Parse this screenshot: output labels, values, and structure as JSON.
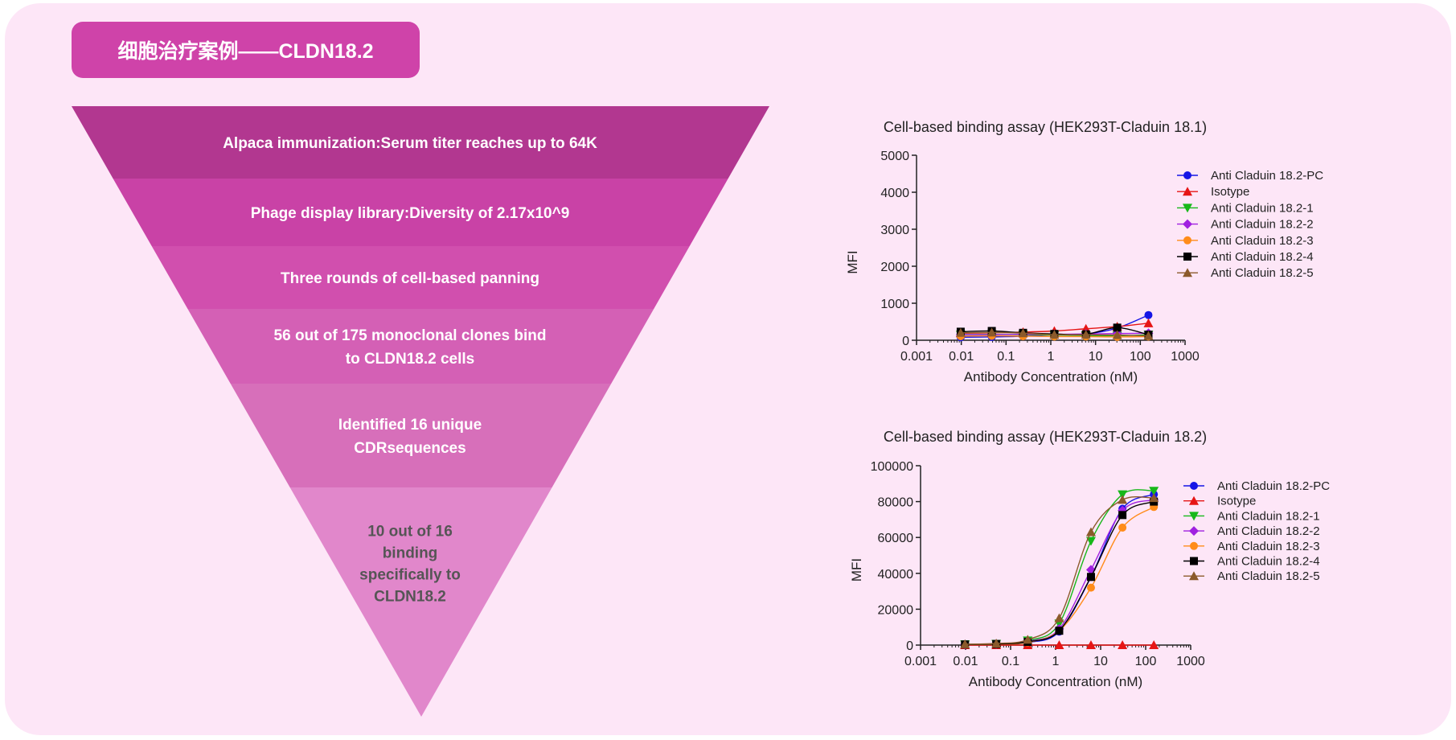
{
  "header": {
    "title": "细胞治疗案例——CLDN18.2"
  },
  "funnel": {
    "stages": [
      {
        "lines": [
          "Alpaca immunization:Serum titer reaches up to 64K"
        ],
        "color": "#b23790",
        "text_color": "#ffffff"
      },
      {
        "lines": [
          "Phage display library:Diversity of 2.17x10^9"
        ],
        "color": "#c942a6",
        "text_color": "#ffffff"
      },
      {
        "lines": [
          "Three rounds of cell-based panning"
        ],
        "color": "#d14fae",
        "text_color": "#ffffff"
      },
      {
        "lines": [
          "56 out of 175 monoclonal clones bind",
          "to CLDN18.2 cells"
        ],
        "color": "#d460b5",
        "text_color": "#ffffff"
      },
      {
        "lines": [
          "Identified 16 unique",
          "CDRsequences"
        ],
        "color": "#d76fba",
        "text_color": "#ffffff"
      },
      {
        "lines": [
          "10 out of 16",
          "binding",
          "specifically to",
          "CLDN18.2"
        ],
        "color": "#e187cb",
        "text_color": "#555555"
      }
    ]
  },
  "chart_data": [
    {
      "type": "scatter",
      "title": "Cell-based binding assay (HEK293T-Claduin 18.1)",
      "xlabel": "Antibody Concentration (nM)",
      "ylabel": "MFI",
      "x_scale": "log",
      "xlim": [
        0.001,
        1000
      ],
      "x_ticks": [
        "0.001",
        "0.01",
        "0.1",
        "1",
        "10",
        "100",
        "1000"
      ],
      "ylim": [
        0,
        5000
      ],
      "y_ticks": [
        "0",
        "1000",
        "2000",
        "3000",
        "4000",
        "5000"
      ],
      "grid": false,
      "legend_position": "top-right",
      "x": [
        0.0097,
        0.048,
        0.24,
        1.2,
        6.1,
        30.5,
        152
      ],
      "series": [
        {
          "name": "Anti Claduin 18.2-PC",
          "marker": "circle",
          "color": "#1515e6",
          "values": [
            80,
            90,
            110,
            150,
            170,
            330,
            680
          ]
        },
        {
          "name": "Isotype",
          "marker": "triangle-up",
          "color": "#e61515",
          "values": [
            190,
            200,
            220,
            250,
            310,
            370,
            460
          ]
        },
        {
          "name": "Anti Claduin 18.2-1",
          "marker": "triangle-down",
          "color": "#17b81a",
          "values": [
            150,
            160,
            150,
            140,
            130,
            120,
            150
          ]
        },
        {
          "name": "Anti Claduin 18.2-2",
          "marker": "diamond",
          "color": "#a020e0",
          "values": [
            150,
            150,
            160,
            160,
            170,
            180,
            190
          ]
        },
        {
          "name": "Anti Claduin 18.2-3",
          "marker": "circle",
          "color": "#ff8c1a",
          "values": [
            110,
            120,
            110,
            100,
            100,
            90,
            100
          ]
        },
        {
          "name": "Anti Claduin 18.2-4",
          "marker": "square",
          "color": "#000000",
          "values": [
            230,
            250,
            200,
            170,
            160,
            340,
            150
          ]
        },
        {
          "name": "Anti Claduin 18.2-5",
          "marker": "triangle-up",
          "color": "#8b5a2b",
          "values": [
            200,
            210,
            190,
            150,
            150,
            140,
            120
          ]
        }
      ]
    },
    {
      "type": "scatter",
      "title": "Cell-based binding assay (HEK293T-Claduin 18.2)",
      "xlabel": "Antibody Concentration (nM)",
      "ylabel": "MFI",
      "x_scale": "log",
      "xlim": [
        0.001,
        1000
      ],
      "x_ticks": [
        "0.001",
        "0.01",
        "0.1",
        "1",
        "10",
        "100",
        "1000"
      ],
      "ylim": [
        0,
        100000
      ],
      "y_ticks": [
        "0",
        "20000",
        "40000",
        "60000",
        "80000",
        "100000"
      ],
      "grid": false,
      "legend_position": "top-right",
      "x": [
        0.0097,
        0.048,
        0.24,
        1.2,
        6.1,
        30.5,
        152
      ],
      "series": [
        {
          "name": "Anti Claduin 18.2-PC",
          "marker": "circle",
          "color": "#1515e6",
          "values": [
            300,
            500,
            1500,
            7500,
            38000,
            76000,
            84000
          ]
        },
        {
          "name": "Isotype",
          "marker": "triangle-up",
          "color": "#e61515",
          "values": [
            0,
            0,
            0,
            0,
            0,
            0,
            0
          ]
        },
        {
          "name": "Anti Claduin 18.2-1",
          "marker": "triangle-down",
          "color": "#17b81a",
          "values": [
            400,
            700,
            2500,
            12000,
            58000,
            84000,
            86000
          ]
        },
        {
          "name": "Anti Claduin 18.2-2",
          "marker": "diamond",
          "color": "#a020e0",
          "values": [
            350,
            600,
            2000,
            9000,
            42000,
            75000,
            81000
          ]
        },
        {
          "name": "Anti Claduin 18.2-3",
          "marker": "circle",
          "color": "#ff8c1a",
          "values": [
            300,
            500,
            1500,
            8000,
            32000,
            65500,
            77000
          ]
        },
        {
          "name": "Anti Claduin 18.2-4",
          "marker": "square",
          "color": "#000000",
          "values": [
            350,
            600,
            1800,
            8000,
            38000,
            72500,
            80000
          ]
        },
        {
          "name": "Anti Claduin 18.2-5",
          "marker": "triangle-up",
          "color": "#8b5a2b",
          "values": [
            500,
            900,
            3000,
            15000,
            63000,
            81000,
            82000
          ]
        }
      ]
    }
  ]
}
